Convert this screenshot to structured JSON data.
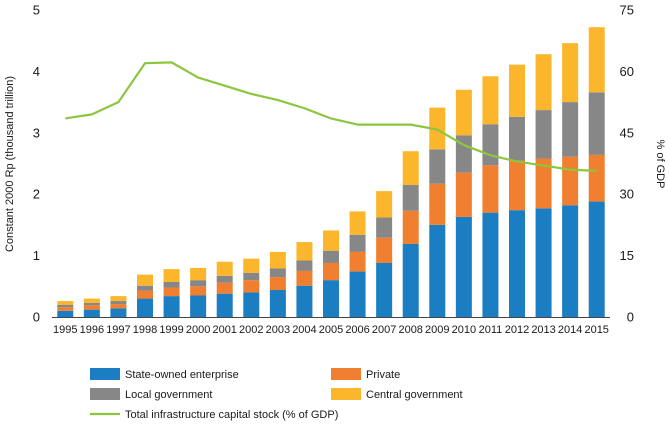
{
  "chart_data": {
    "type": "bar",
    "stacked": true,
    "categories": [
      "1995",
      "1996",
      "1997",
      "1998",
      "1999",
      "2000",
      "2001",
      "2002",
      "2003",
      "2004",
      "2005",
      "2006",
      "2007",
      "2008",
      "2009",
      "2010",
      "2011",
      "2012",
      "2013",
      "2014",
      "2015"
    ],
    "series": [
      {
        "name": "State-owned enterprise",
        "color": "#1b7dc2",
        "values": [
          0.1,
          0.12,
          0.14,
          0.3,
          0.34,
          0.35,
          0.38,
          0.4,
          0.44,
          0.51,
          0.6,
          0.74,
          0.88,
          1.19,
          1.5,
          1.63,
          1.7,
          1.74,
          1.77,
          1.82,
          1.88
        ]
      },
      {
        "name": "Private",
        "color": "#f07f2f",
        "values": [
          0.06,
          0.07,
          0.07,
          0.13,
          0.14,
          0.15,
          0.18,
          0.2,
          0.21,
          0.24,
          0.28,
          0.32,
          0.41,
          0.54,
          0.67,
          0.72,
          0.77,
          0.81,
          0.81,
          0.79,
          0.76
        ]
      },
      {
        "name": "Local government",
        "color": "#878787",
        "values": [
          0.04,
          0.04,
          0.05,
          0.08,
          0.09,
          0.1,
          0.11,
          0.12,
          0.14,
          0.17,
          0.2,
          0.28,
          0.33,
          0.42,
          0.56,
          0.61,
          0.67,
          0.71,
          0.79,
          0.89,
          1.02
        ]
      },
      {
        "name": "Central government",
        "color": "#fbb62c",
        "values": [
          0.06,
          0.07,
          0.08,
          0.18,
          0.21,
          0.2,
          0.23,
          0.23,
          0.27,
          0.3,
          0.33,
          0.38,
          0.43,
          0.55,
          0.68,
          0.74,
          0.78,
          0.85,
          0.91,
          0.96,
          1.06
        ]
      }
    ],
    "line": {
      "name": "Total infrastructure capital stock (% of GDP)",
      "color": "#8cc63f",
      "values": [
        48.5,
        49.5,
        52.5,
        62,
        62.2,
        58.5,
        56.5,
        54.5,
        53,
        51,
        48.5,
        47,
        47,
        47,
        45.8,
        42,
        39.5,
        38,
        37,
        36,
        35.7
      ]
    },
    "y_left": {
      "label": "Constant 2000 Rp (thousand trillion)",
      "ylim": [
        0,
        5
      ],
      "ticks": [
        "0",
        "1",
        "2",
        "3",
        "4",
        "5"
      ]
    },
    "y_right": {
      "label": "% of GDP",
      "ylim": [
        0,
        75
      ],
      "ticks": [
        "0",
        "15",
        "30",
        "45",
        "60",
        "75"
      ]
    },
    "legend": [
      {
        "label": "State-owned enterprise",
        "kind": "bar",
        "color": "#1b7dc2"
      },
      {
        "label": "Private",
        "kind": "bar",
        "color": "#f07f2f"
      },
      {
        "label": "Local government",
        "kind": "bar",
        "color": "#878787"
      },
      {
        "label": "Central government",
        "kind": "bar",
        "color": "#fbb62c"
      },
      {
        "label": "Total infrastructure capital stock (% of GDP)",
        "kind": "line",
        "color": "#8cc63f"
      }
    ]
  }
}
